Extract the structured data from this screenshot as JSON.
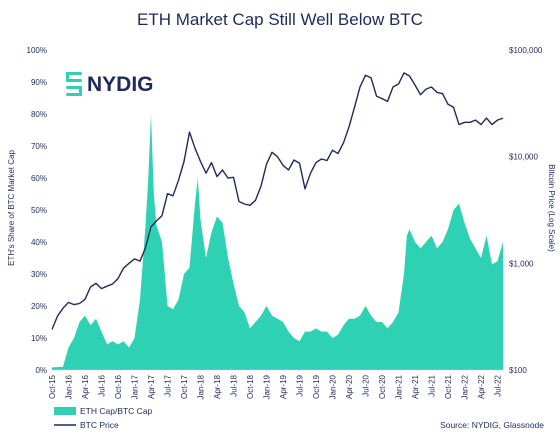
{
  "chart_data": {
    "type": "area+line",
    "title": "ETH Market Cap Still Well Below BTC",
    "left_axis": {
      "label": "ETH's Share of BTC Market Cap",
      "ticks": [
        "0%",
        "10%",
        "20%",
        "30%",
        "40%",
        "50%",
        "60%",
        "70%",
        "80%",
        "90%",
        "100%"
      ],
      "range": [
        0,
        100
      ]
    },
    "right_axis": {
      "label": "Bitcoin Price (Log Scale)",
      "scale": "log",
      "ticks": [
        "$100",
        "$1,000",
        "$10,000",
        "$100,000"
      ],
      "range": [
        100,
        100000
      ]
    },
    "x_axis": {
      "ticks": [
        "Oct-15",
        "Jan-16",
        "Apr-16",
        "Jul-16",
        "Oct-16",
        "Jan-17",
        "Apr-17",
        "Jul-17",
        "Oct-17",
        "Jan-18",
        "Apr-18",
        "Jul-18",
        "Oct-18",
        "Jan-19",
        "Apr-19",
        "Jul-19",
        "Oct-19",
        "Jan-20",
        "Apr-20",
        "Jul-20",
        "Oct-20",
        "Jan-21",
        "Apr-21",
        "Jul-21",
        "Oct-21",
        "Jan-22",
        "Apr-22",
        "Jul-22"
      ]
    },
    "x_range_months": [
      0,
      82
    ],
    "series": [
      {
        "name": "ETH Cap/BTC Cap",
        "type": "area",
        "color": "#2fd1b5",
        "axis": "left",
        "points": [
          [
            0,
            0.8
          ],
          [
            2,
            1
          ],
          [
            3,
            7
          ],
          [
            4,
            10
          ],
          [
            5,
            15
          ],
          [
            6,
            17
          ],
          [
            7,
            14
          ],
          [
            8,
            16
          ],
          [
            9,
            12
          ],
          [
            10,
            8
          ],
          [
            11,
            9
          ],
          [
            12,
            8
          ],
          [
            13,
            9
          ],
          [
            14,
            7
          ],
          [
            15,
            10
          ],
          [
            16,
            22
          ],
          [
            17,
            45
          ],
          [
            17.5,
            60
          ],
          [
            18,
            80
          ],
          [
            18.5,
            55
          ],
          [
            19,
            45
          ],
          [
            20,
            40
          ],
          [
            20.5,
            30
          ],
          [
            21,
            20
          ],
          [
            22,
            19
          ],
          [
            23,
            22
          ],
          [
            24,
            30
          ],
          [
            25,
            32
          ],
          [
            26,
            52
          ],
          [
            26.5,
            60
          ],
          [
            27,
            47
          ],
          [
            28,
            35
          ],
          [
            29,
            43
          ],
          [
            30,
            48
          ],
          [
            31,
            46
          ],
          [
            32,
            35
          ],
          [
            33,
            27
          ],
          [
            34,
            20
          ],
          [
            35,
            18
          ],
          [
            36,
            13
          ],
          [
            37,
            15
          ],
          [
            38,
            17
          ],
          [
            39,
            20
          ],
          [
            40,
            17
          ],
          [
            41,
            16
          ],
          [
            42,
            15
          ],
          [
            43,
            12
          ],
          [
            44,
            10
          ],
          [
            45,
            9
          ],
          [
            46,
            12
          ],
          [
            47,
            12
          ],
          [
            48,
            13
          ],
          [
            49,
            12
          ],
          [
            50,
            12
          ],
          [
            51,
            10
          ],
          [
            52,
            11
          ],
          [
            53,
            14
          ],
          [
            54,
            16
          ],
          [
            55,
            16
          ],
          [
            56,
            17
          ],
          [
            57,
            20
          ],
          [
            58,
            17
          ],
          [
            59,
            15
          ],
          [
            60,
            15
          ],
          [
            61,
            13
          ],
          [
            62,
            15
          ],
          [
            63,
            18
          ],
          [
            64,
            30
          ],
          [
            64.5,
            42
          ],
          [
            65,
            44
          ],
          [
            66,
            40
          ],
          [
            67,
            38
          ],
          [
            68,
            40
          ],
          [
            69,
            42
          ],
          [
            70,
            38
          ],
          [
            71,
            40
          ],
          [
            72,
            44
          ],
          [
            73,
            50
          ],
          [
            74,
            52
          ],
          [
            75,
            46
          ],
          [
            76,
            41
          ],
          [
            77,
            38
          ],
          [
            78,
            35
          ],
          [
            79,
            42
          ],
          [
            80,
            33
          ],
          [
            81,
            34
          ],
          [
            82,
            40
          ]
        ]
      },
      {
        "name": "BTC Price",
        "type": "line",
        "color": "#1f2a5c",
        "axis": "right",
        "points": [
          [
            0,
            240
          ],
          [
            1,
            320
          ],
          [
            2,
            380
          ],
          [
            3,
            430
          ],
          [
            4,
            410
          ],
          [
            5,
            420
          ],
          [
            6,
            460
          ],
          [
            7,
            600
          ],
          [
            8,
            650
          ],
          [
            9,
            580
          ],
          [
            10,
            610
          ],
          [
            11,
            640
          ],
          [
            12,
            720
          ],
          [
            13,
            900
          ],
          [
            14,
            1000
          ],
          [
            15,
            1100
          ],
          [
            16,
            1050
          ],
          [
            17,
            1400
          ],
          [
            18,
            2200
          ],
          [
            19,
            2500
          ],
          [
            20,
            2800
          ],
          [
            21,
            4500
          ],
          [
            22,
            4300
          ],
          [
            23,
            6000
          ],
          [
            24,
            9000
          ],
          [
            25,
            17000
          ],
          [
            26,
            12000
          ],
          [
            27,
            9000
          ],
          [
            28,
            7000
          ],
          [
            29,
            8800
          ],
          [
            30,
            6500
          ],
          [
            31,
            7500
          ],
          [
            32,
            6300
          ],
          [
            33,
            6400
          ],
          [
            34,
            3800
          ],
          [
            35,
            3600
          ],
          [
            36,
            3500
          ],
          [
            37,
            3900
          ],
          [
            38,
            5300
          ],
          [
            39,
            8500
          ],
          [
            40,
            11000
          ],
          [
            41,
            10000
          ],
          [
            42,
            8300
          ],
          [
            43,
            7500
          ],
          [
            44,
            9300
          ],
          [
            45,
            8700
          ],
          [
            46,
            5000
          ],
          [
            47,
            7000
          ],
          [
            48,
            8800
          ],
          [
            49,
            9500
          ],
          [
            50,
            9200
          ],
          [
            51,
            11500
          ],
          [
            52,
            10700
          ],
          [
            53,
            13500
          ],
          [
            54,
            19000
          ],
          [
            55,
            29000
          ],
          [
            56,
            45000
          ],
          [
            57,
            58000
          ],
          [
            58,
            55000
          ],
          [
            59,
            37000
          ],
          [
            60,
            35000
          ],
          [
            61,
            33000
          ],
          [
            62,
            45000
          ],
          [
            63,
            48000
          ],
          [
            64,
            61000
          ],
          [
            65,
            57000
          ],
          [
            66,
            47000
          ],
          [
            67,
            38000
          ],
          [
            68,
            43000
          ],
          [
            69,
            45000
          ],
          [
            70,
            40000
          ],
          [
            71,
            39000
          ],
          [
            72,
            31000
          ],
          [
            73,
            29000
          ],
          [
            74,
            20000
          ],
          [
            75,
            21000
          ],
          [
            76,
            21000
          ],
          [
            77,
            22000
          ],
          [
            78,
            20000
          ],
          [
            79,
            23000
          ],
          [
            80,
            20000
          ],
          [
            81,
            22000
          ],
          [
            82,
            23000
          ]
        ]
      }
    ],
    "legend": {
      "placement": "bottom-left"
    }
  },
  "source": "Source: NYDIG, Glassnode",
  "logo": {
    "text": "NYDIG",
    "color": "#2fd1b5"
  }
}
